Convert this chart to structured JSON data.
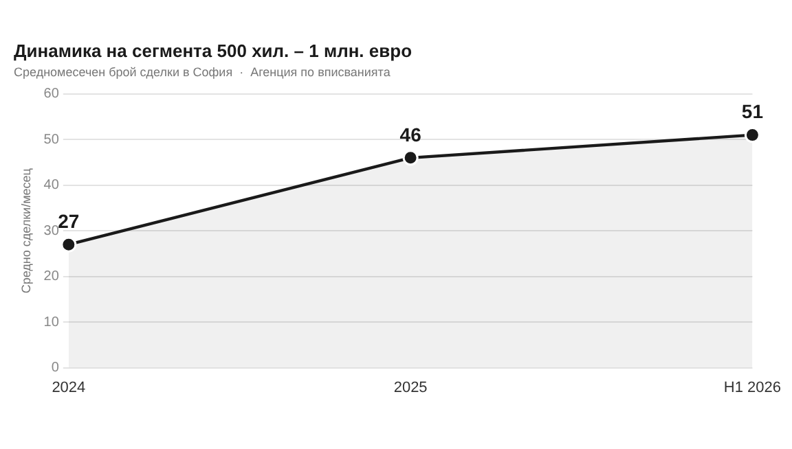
{
  "chart_data": {
    "type": "area",
    "title": "Динамика на сегмента 500 хил. – 1 млн. евро",
    "subtitle": "Средномесечен брой сделки в София  ·  Агенция по вписванията",
    "ylabel": "Средно сделки/месец",
    "categories": [
      "2024",
      "2025",
      "H1 2026"
    ],
    "series": [
      {
        "color": "#1a1a1a",
        "values": [
          27,
          46,
          51
        ]
      }
    ],
    "ylim": [
      0,
      60
    ],
    "yticks": [
      0,
      10,
      20,
      30,
      40,
      50,
      60
    ],
    "grid": "y",
    "legend": false,
    "marker": "circle",
    "line_style": "solid",
    "data_labels": true
  }
}
